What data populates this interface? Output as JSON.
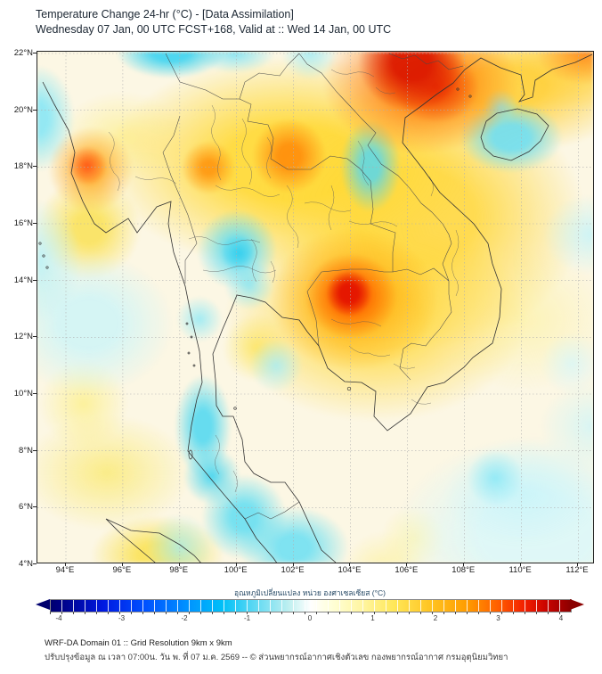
{
  "header": {
    "title": "Temperature Change 24-hr (°C) - [Data Assimilation]",
    "subtitle": "Wednesday 07 Jan, 00 UTC FCST+168, Valid at :: Wed 14 Jan, 00 UTC"
  },
  "map": {
    "lat_ticks": [
      "22°N",
      "20°N",
      "18°N",
      "16°N",
      "14°N",
      "12°N",
      "10°N",
      "8°N",
      "6°N",
      "4°N"
    ],
    "lon_ticks": [
      "94°E",
      "96°E",
      "98°E",
      "100°E",
      "102°E",
      "104°E",
      "106°E",
      "108°E",
      "110°E",
      "112°E"
    ],
    "notable_anomalies": [
      {
        "label": "warming max",
        "approx_lon": "104°E",
        "approx_lat": "13.5°N",
        "approx_value_c": 4
      },
      {
        "label": "warming max",
        "approx_lon": "106°E",
        "approx_lat": "21.5°N",
        "approx_value_c": 4
      },
      {
        "label": "cooling area",
        "approx_lon": "99.5°E",
        "approx_lat": "7-10°N",
        "approx_value_c": -1
      }
    ]
  },
  "colorbar": {
    "label": "อุณหภูมิเปลี่ยนแปลง หน่วย องศาเซลเซียส (°C)",
    "ticks": [
      "-4",
      "-3",
      "-2",
      "-1",
      "0",
      "1",
      "2",
      "3",
      "4"
    ],
    "min": -4,
    "max": 4,
    "unit": "°C",
    "negative_end_color": "#00006e",
    "positive_end_color": "#8b0000"
  },
  "footer": {
    "line1": "WRF-DA Domain 01 :: Grid Resolution 9km x 9km",
    "line2": "ปรับปรุงข้อมูล ณ เวลา 07:00น. วัน พ. ที่ 07 ม.ค. 2569 -- © ส่วนพยากรณ์อากาศเชิงตัวเลข กองพยากรณ์อากาศ กรมอุตุนิยมวิทยา"
  }
}
